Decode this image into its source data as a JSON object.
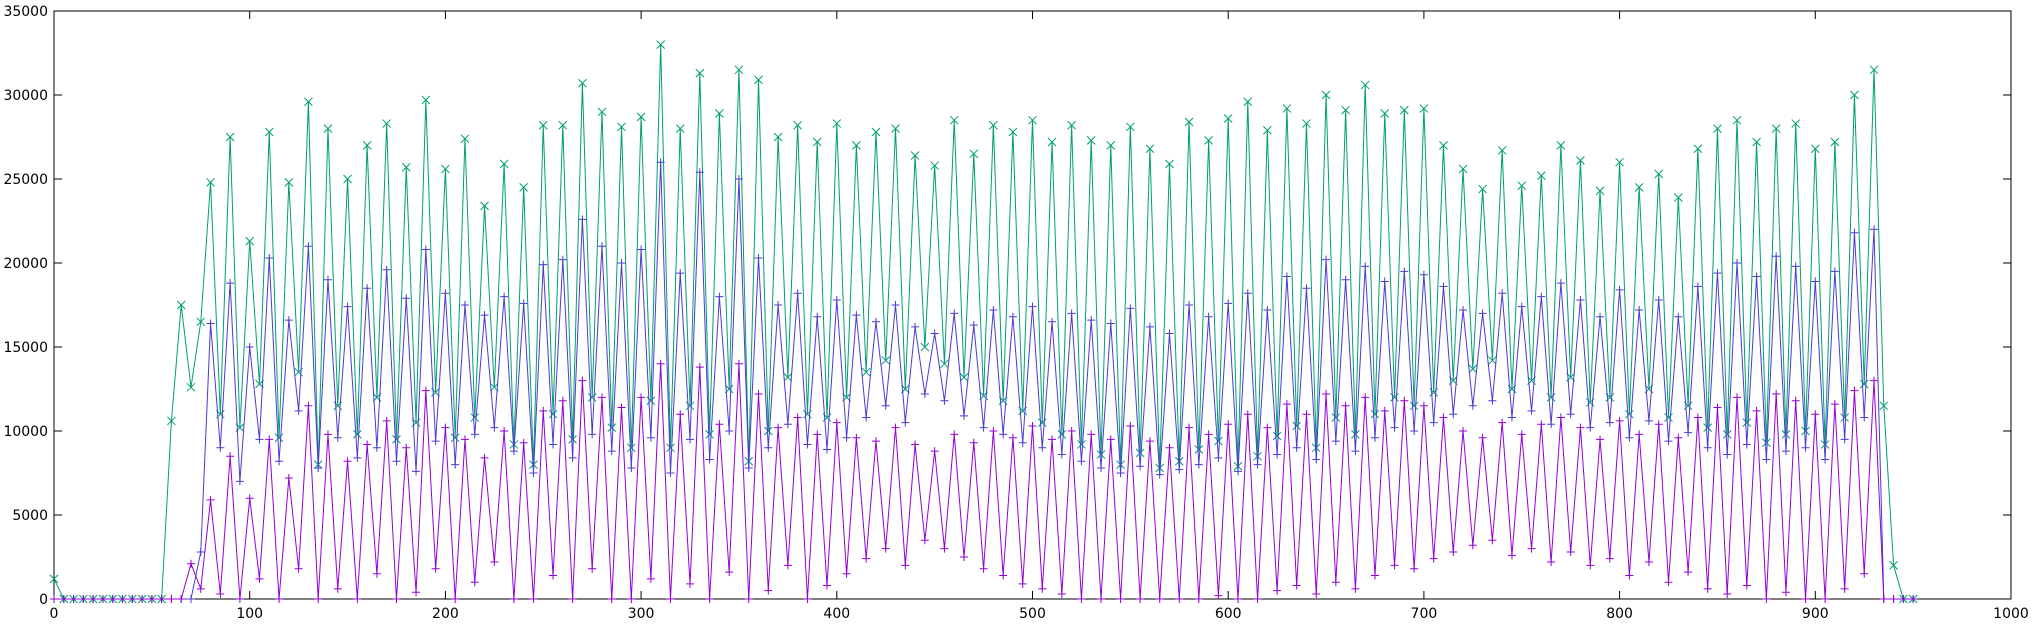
{
  "chart_data": {
    "type": "line",
    "x": [
      0,
      5,
      10,
      15,
      20,
      25,
      30,
      35,
      40,
      45,
      50,
      55,
      60,
      65,
      70,
      75,
      80,
      85,
      90,
      95,
      100,
      105,
      110,
      115,
      120,
      125,
      130,
      135,
      140,
      145,
      150,
      155,
      160,
      165,
      170,
      175,
      180,
      185,
      190,
      195,
      200,
      205,
      210,
      215,
      220,
      225,
      230,
      235,
      240,
      245,
      250,
      255,
      260,
      265,
      270,
      275,
      280,
      285,
      290,
      295,
      300,
      305,
      310,
      315,
      320,
      325,
      330,
      335,
      340,
      345,
      350,
      355,
      360,
      365,
      370,
      375,
      380,
      385,
      390,
      395,
      400,
      405,
      410,
      415,
      420,
      425,
      430,
      435,
      440,
      445,
      450,
      455,
      460,
      465,
      470,
      475,
      480,
      485,
      490,
      495,
      500,
      505,
      510,
      515,
      520,
      525,
      530,
      535,
      540,
      545,
      550,
      555,
      560,
      565,
      570,
      575,
      580,
      585,
      590,
      595,
      600,
      605,
      610,
      615,
      620,
      625,
      630,
      635,
      640,
      645,
      650,
      655,
      660,
      665,
      670,
      675,
      680,
      685,
      690,
      695,
      700,
      705,
      710,
      715,
      720,
      725,
      730,
      735,
      740,
      745,
      750,
      755,
      760,
      765,
      770,
      775,
      780,
      785,
      790,
      795,
      800,
      805,
      810,
      815,
      820,
      825,
      830,
      835,
      840,
      845,
      850,
      855,
      860,
      865,
      870,
      875,
      880,
      885,
      890,
      895,
      900,
      905,
      910,
      915,
      920,
      925,
      930,
      935,
      940,
      945,
      950
    ],
    "series": [
      {
        "color": "#009e73",
        "marker": "x",
        "values": [
          1200,
          0,
          0,
          0,
          0,
          0,
          0,
          0,
          0,
          0,
          0,
          0,
          10600,
          17500,
          12600,
          16500,
          24800,
          11000,
          27500,
          10200,
          21300,
          12800,
          27800,
          9600,
          24800,
          13500,
          29600,
          8000,
          28000,
          11500,
          25000,
          9800,
          27000,
          12000,
          28300,
          9500,
          25700,
          10500,
          29700,
          12300,
          25600,
          9600,
          27400,
          10800,
          23400,
          12600,
          25900,
          9200,
          24500,
          8000,
          28200,
          11000,
          28200,
          9500,
          30700,
          12000,
          29000,
          10200,
          28100,
          9000,
          28700,
          11800,
          33000,
          9000,
          28000,
          11500,
          31300,
          9800,
          28900,
          12500,
          31500,
          8200,
          30900,
          10000,
          27500,
          13200,
          28200,
          11000,
          27200,
          10800,
          28300,
          12000,
          27000,
          13500,
          27800,
          14200,
          28000,
          12500,
          26400,
          15000,
          25800,
          14000,
          28500,
          13200,
          26500,
          12100,
          28200,
          11800,
          27800,
          11200,
          28500,
          10500,
          27200,
          9800,
          28200,
          9200,
          27300,
          8600,
          27000,
          8000,
          28100,
          8700,
          26800,
          7800,
          25900,
          8200,
          28400,
          8900,
          27300,
          9400,
          28600,
          7900,
          29600,
          8500,
          27900,
          9700,
          29200,
          10300,
          28300,
          9000,
          30000,
          10800,
          29100,
          9800,
          30600,
          11000,
          28900,
          12000,
          29100,
          11500,
          29200,
          12300,
          27000,
          13000,
          25600,
          13700,
          24400,
          14200,
          26700,
          12500,
          24600,
          13000,
          25200,
          12000,
          27000,
          13200,
          26100,
          11700,
          24300,
          12000,
          26000,
          11000,
          24500,
          12500,
          25300,
          10800,
          23900,
          11500,
          26800,
          10200,
          28000,
          9800,
          28500,
          10500,
          27200,
          9300,
          28000,
          9800,
          28300,
          10000,
          26800,
          9200,
          27200,
          10800,
          30000,
          12800,
          31500,
          11500,
          2000,
          0,
          0
        ]
      },
      {
        "color": "#4b3bd0",
        "marker": "+",
        "values": [
          0,
          0,
          0,
          0,
          0,
          0,
          0,
          0,
          0,
          0,
          0,
          0,
          0,
          0,
          0,
          2800,
          16400,
          9000,
          18800,
          7000,
          15000,
          9500,
          20300,
          8200,
          16600,
          11200,
          21000,
          7800,
          19000,
          9600,
          17400,
          8400,
          18500,
          9000,
          19600,
          8200,
          17900,
          7600,
          20800,
          9400,
          18200,
          8000,
          17500,
          9800,
          16900,
          10200,
          18000,
          8800,
          17600,
          7500,
          19900,
          9200,
          20200,
          8400,
          22600,
          9800,
          21000,
          8800,
          20000,
          7800,
          20800,
          9600,
          26000,
          7500,
          19400,
          9500,
          25400,
          8300,
          18000,
          10000,
          25000,
          7800,
          20300,
          9000,
          17500,
          10400,
          18200,
          9200,
          16800,
          8900,
          17800,
          9600,
          16900,
          10800,
          16500,
          11500,
          17500,
          10500,
          16200,
          12200,
          15800,
          11800,
          17000,
          10900,
          16300,
          10200,
          17200,
          9800,
          16800,
          9300,
          17400,
          9000,
          16500,
          8600,
          17000,
          8200,
          16600,
          7800,
          16400,
          7500,
          17300,
          7900,
          16200,
          7400,
          15800,
          7700,
          17500,
          8000,
          16800,
          8400,
          17600,
          7600,
          18200,
          8000,
          17200,
          8600,
          19200,
          9000,
          18500,
          8300,
          20200,
          9400,
          19000,
          8800,
          19800,
          9600,
          18900,
          10200,
          19500,
          10000,
          19300,
          10500,
          18600,
          11000,
          17200,
          11500,
          17000,
          11800,
          18200,
          10800,
          17400,
          11200,
          18000,
          10400,
          18800,
          11000,
          17800,
          10200,
          16800,
          10500,
          18400,
          9600,
          17200,
          10600,
          17800,
          9400,
          16800,
          9900,
          18600,
          9000,
          19400,
          8600,
          20000,
          9200,
          19200,
          8300,
          20400,
          8800,
          19800,
          9000,
          18900,
          8300,
          19500,
          9500,
          21800,
          10800,
          22000,
          0,
          0,
          0,
          0
        ]
      },
      {
        "color": "#9400d3",
        "marker": "+",
        "values": [
          0,
          0,
          0,
          0,
          0,
          0,
          0,
          0,
          0,
          0,
          0,
          0,
          0,
          0,
          2100,
          600,
          5900,
          300,
          8500,
          0,
          6000,
          1200,
          9500,
          0,
          7200,
          1800,
          11500,
          0,
          9800,
          600,
          8200,
          0,
          9200,
          1500,
          10600,
          0,
          9000,
          400,
          12400,
          1800,
          10200,
          0,
          9500,
          1000,
          8400,
          2200,
          10000,
          0,
          9300,
          0,
          11200,
          1400,
          11800,
          0,
          13000,
          1800,
          12000,
          0,
          11400,
          0,
          12000,
          1200,
          14000,
          0,
          11000,
          900,
          13800,
          0,
          10400,
          1600,
          14000,
          0,
          12200,
          500,
          10200,
          2000,
          10800,
          0,
          9800,
          800,
          10500,
          1500,
          9600,
          2400,
          9400,
          3000,
          10200,
          2000,
          9200,
          3500,
          8800,
          3000,
          9800,
          2500,
          9300,
          1800,
          10000,
          1400,
          9600,
          900,
          10300,
          600,
          9500,
          300,
          10000,
          0,
          9800,
          0,
          9500,
          0,
          10300,
          0,
          9400,
          0,
          9000,
          0,
          10200,
          0,
          9800,
          200,
          10400,
          0,
          11000,
          0,
          10200,
          500,
          11600,
          800,
          11000,
          300,
          12200,
          1000,
          11500,
          600,
          12000,
          1400,
          11200,
          2000,
          11800,
          1800,
          11500,
          2400,
          10800,
          2800,
          10000,
          3200,
          9600,
          3500,
          10500,
          2600,
          9800,
          3000,
          10400,
          2200,
          10800,
          2800,
          10200,
          2000,
          9500,
          2400,
          10600,
          1400,
          9800,
          2200,
          10400,
          1000,
          9600,
          1600,
          10800,
          600,
          11400,
          300,
          12000,
          800,
          11200,
          0,
          12200,
          400,
          11800,
          0,
          11000,
          0,
          11600,
          600,
          12400,
          1500,
          13000,
          0,
          0,
          0,
          0
        ]
      }
    ],
    "xlim": [
      0,
      1000
    ],
    "xticks": [
      0,
      100,
      200,
      300,
      400,
      500,
      600,
      700,
      800,
      900,
      1000
    ],
    "ylim": [
      0,
      35000
    ],
    "yticks": [
      0,
      5000,
      10000,
      15000,
      20000,
      25000,
      30000,
      35000
    ]
  }
}
